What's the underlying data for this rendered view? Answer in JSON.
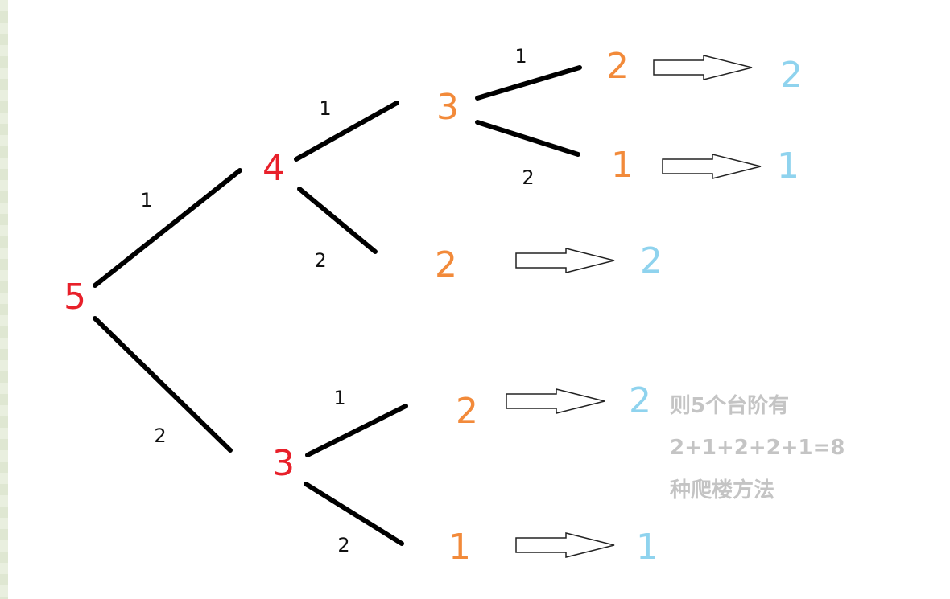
{
  "colors": {
    "root_node": "#e8202a",
    "mid_node": "#f28a3a",
    "result": "#8fd3ee",
    "edge": "#000000",
    "edge_label": "#111111",
    "caption": "#c4c4c4"
  },
  "nodes": {
    "root": "5",
    "n4": "4",
    "n3_top": "3",
    "n2_a": "2",
    "n1_a": "1",
    "n2_b": "2",
    "n3_bottom": "3",
    "n2_c": "2",
    "n1_b": "1"
  },
  "edge_labels": {
    "root_to_4": "1",
    "root_to_3": "2",
    "n4_to_3": "1",
    "n4_to_2": "2",
    "n3top_to_2": "1",
    "n3top_to_1": "2",
    "n3bottom_to_2": "1",
    "n3bottom_to_1": "2"
  },
  "results": {
    "r1": "2",
    "r2": "1",
    "r3": "2",
    "r4": "2",
    "r5": "1"
  },
  "caption": {
    "line1": "则5个台阶有",
    "line2": "2+1+2+2+1=8",
    "line3": "种爬楼方法"
  }
}
